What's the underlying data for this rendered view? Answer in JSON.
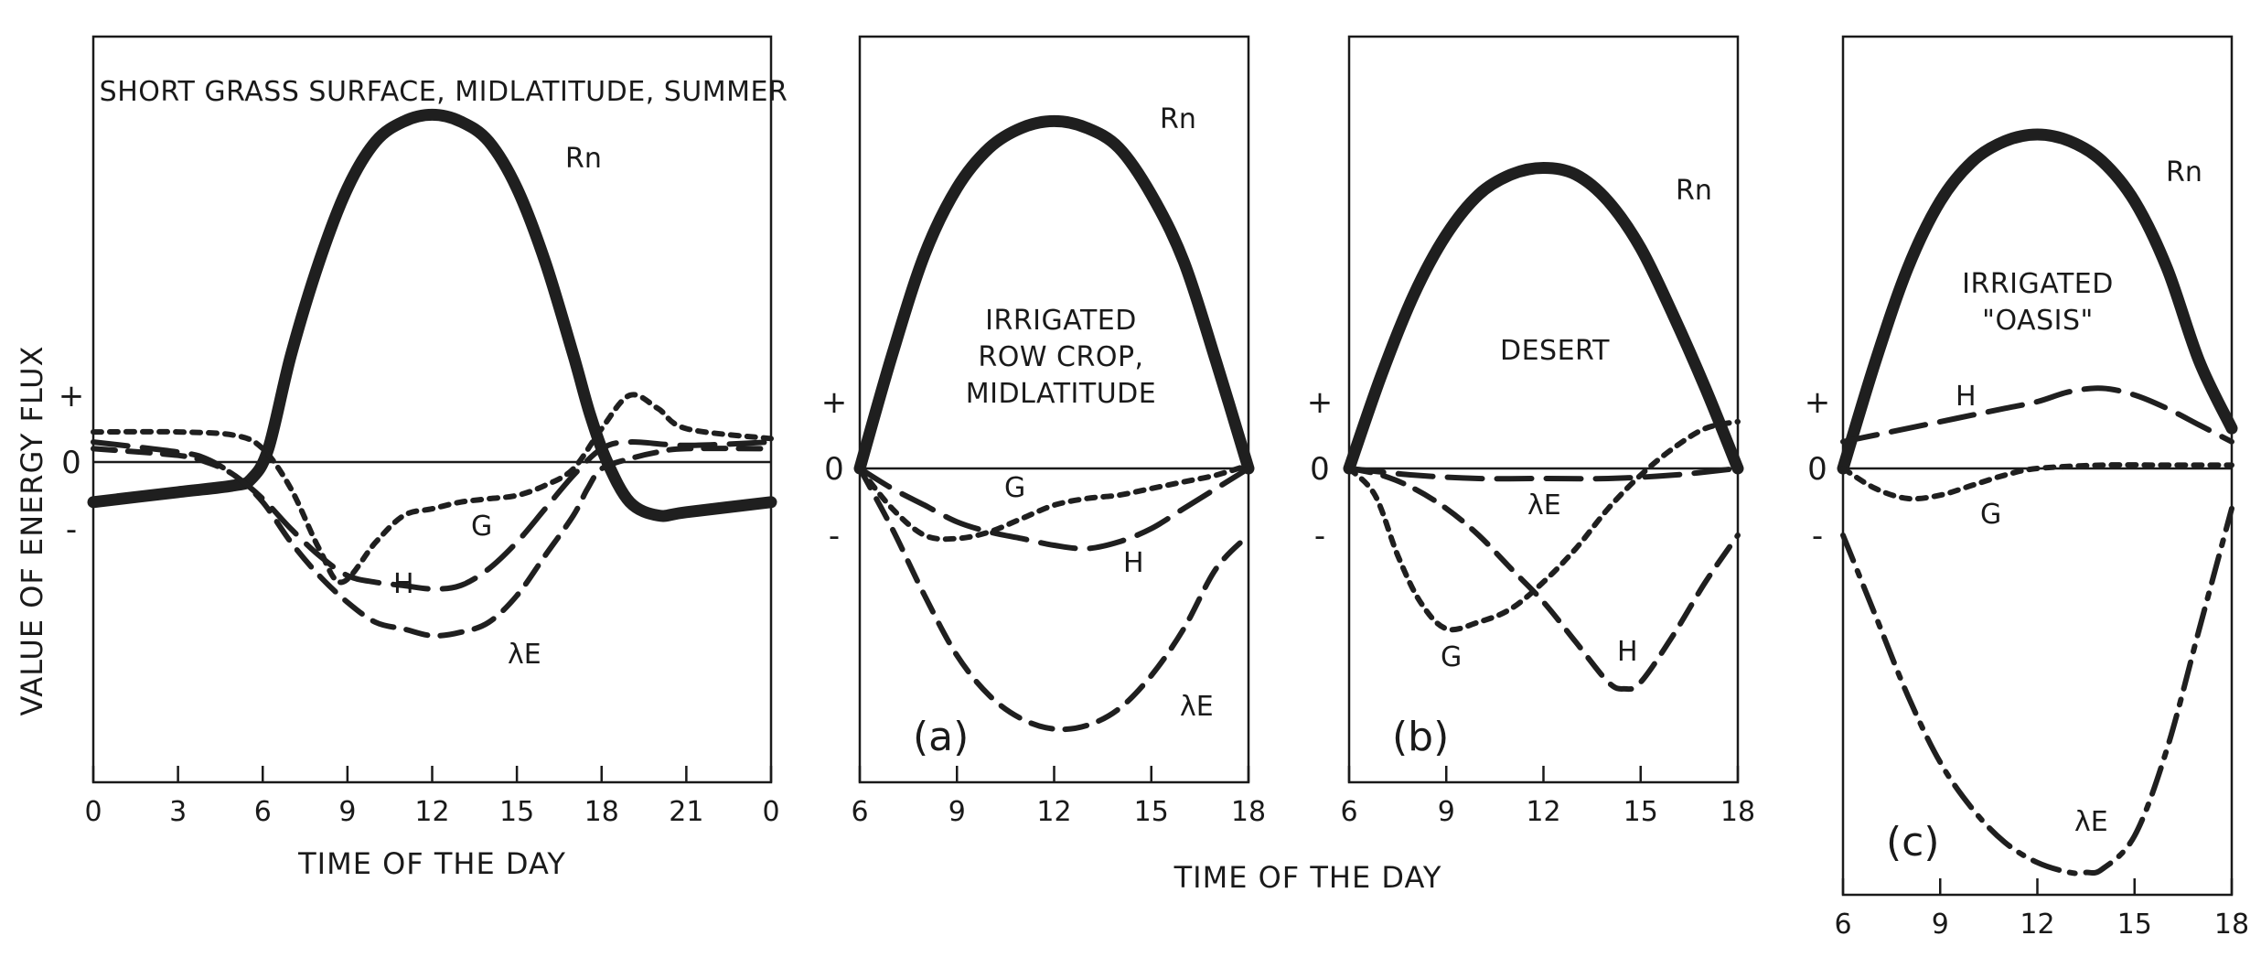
{
  "figure": {
    "ylabel": "VALUE OF ENERGY FLUX",
    "shared_xlabel": "TIME OF THE DAY"
  },
  "chart_data": [
    {
      "type": "line",
      "title": "SHORT GRASS SURFACE, MIDLATITUDE, SUMMER",
      "xlabel": "TIME OF THE DAY",
      "ylabel": "VALUE OF ENERGY FLUX",
      "panel_label": "",
      "xticks": [
        "0",
        "3",
        "6",
        "9",
        "12",
        "15",
        "18",
        "21",
        "0"
      ],
      "xlim": [
        0,
        24
      ],
      "ylim": [
        -4.5,
        5.5
      ],
      "yticks": [
        "+",
        "0",
        "-"
      ],
      "ytick_values": [
        1,
        0,
        -1
      ],
      "series": [
        {
          "name": "Rn",
          "style": "solid-thick",
          "x": [
            0,
            3,
            5,
            5.6,
            6.2,
            7,
            8,
            9,
            10,
            11,
            12,
            13,
            14,
            15,
            16,
            17,
            17.6,
            18.2,
            19,
            20,
            21,
            24
          ],
          "y": [
            -0.6,
            -0.45,
            -0.35,
            -0.25,
            0.2,
            1.6,
            3.0,
            4.1,
            4.8,
            5.1,
            5.2,
            5.1,
            4.8,
            4.1,
            3.0,
            1.6,
            0.7,
            0.0,
            -0.6,
            -0.8,
            -0.75,
            -0.6
          ]
        },
        {
          "name": "H",
          "style": "long-dash",
          "x": [
            0,
            3,
            4,
            5,
            6,
            7,
            8,
            9,
            10,
            11,
            12,
            13,
            14,
            15,
            16,
            17,
            18,
            19,
            21,
            24
          ],
          "y": [
            0.3,
            0.15,
            0.05,
            -0.2,
            -0.55,
            -1.0,
            -1.4,
            -1.7,
            -1.8,
            -1.85,
            -1.9,
            -1.85,
            -1.6,
            -1.2,
            -0.7,
            -0.2,
            0.2,
            0.3,
            0.25,
            0.3
          ]
        },
        {
          "name": "G",
          "style": "short-dash",
          "x": [
            0,
            3,
            5,
            6,
            7,
            8,
            8.8,
            10,
            11,
            12,
            13,
            14,
            15,
            16,
            17,
            18,
            19,
            20,
            21,
            24
          ],
          "y": [
            0.45,
            0.45,
            0.4,
            0.2,
            -0.4,
            -1.3,
            -1.8,
            -1.2,
            -0.8,
            -0.7,
            -0.6,
            -0.55,
            -0.5,
            -0.35,
            -0.1,
            0.5,
            1.0,
            0.8,
            0.5,
            0.35
          ]
        },
        {
          "name": "λE",
          "style": "dash",
          "x": [
            0,
            3,
            4,
            5,
            6,
            7,
            8,
            9,
            10,
            11,
            12,
            13,
            14,
            15,
            16,
            17,
            17.5,
            18,
            19,
            20,
            21,
            24
          ],
          "y": [
            0.2,
            0.1,
            0.0,
            -0.2,
            -0.6,
            -1.2,
            -1.7,
            -2.1,
            -2.4,
            -2.5,
            -2.6,
            -2.55,
            -2.4,
            -2.0,
            -1.4,
            -0.8,
            -0.4,
            -0.1,
            0.05,
            0.15,
            0.2,
            0.2
          ]
        }
      ],
      "curve_labels": [
        "Rn",
        "G",
        "H",
        "λE"
      ]
    },
    {
      "type": "line",
      "title": "IRRIGATED ROW CROP, MIDLATITUDE",
      "xlabel": "",
      "ylabel": "",
      "panel_label": "(a)",
      "xticks": [
        "6",
        "9",
        "12",
        "15",
        "18"
      ],
      "xlim": [
        6,
        18
      ],
      "ylim": [
        -4.5,
        5.5
      ],
      "yticks": [
        "+",
        "0",
        "-"
      ],
      "ytick_values": [
        1,
        0,
        -1
      ],
      "series": [
        {
          "name": "Rn",
          "style": "solid-thick",
          "x": [
            6,
            7,
            8,
            9,
            10,
            11,
            12,
            13,
            14,
            15,
            16,
            17,
            18
          ],
          "y": [
            0,
            1.7,
            3.2,
            4.2,
            4.8,
            5.1,
            5.2,
            5.1,
            4.8,
            4.1,
            3.1,
            1.6,
            0
          ]
        },
        {
          "name": "G",
          "style": "short-dash",
          "x": [
            6,
            7,
            8,
            9,
            10,
            11,
            12,
            13,
            14,
            15,
            16,
            17,
            18
          ],
          "y": [
            0,
            -0.6,
            -1.0,
            -1.05,
            -0.95,
            -0.75,
            -0.55,
            -0.45,
            -0.4,
            -0.3,
            -0.2,
            -0.1,
            0.05
          ]
        },
        {
          "name": "H",
          "style": "long-dash",
          "x": [
            6,
            7,
            8,
            9,
            10,
            11,
            12,
            13,
            14,
            15,
            16,
            17,
            18
          ],
          "y": [
            0,
            -0.3,
            -0.55,
            -0.8,
            -0.95,
            -1.05,
            -1.15,
            -1.2,
            -1.1,
            -0.9,
            -0.6,
            -0.3,
            0
          ]
        },
        {
          "name": "λE",
          "style": "dash",
          "x": [
            6,
            7,
            8,
            9,
            10,
            11,
            12,
            13,
            14,
            15,
            16,
            17,
            18
          ],
          "y": [
            0,
            -0.9,
            -1.9,
            -2.8,
            -3.4,
            -3.75,
            -3.9,
            -3.85,
            -3.6,
            -3.1,
            -2.4,
            -1.5,
            -1.0
          ]
        }
      ],
      "curve_labels": [
        "Rn",
        "G",
        "H",
        "λE"
      ]
    },
    {
      "type": "line",
      "title": "DESERT",
      "xlabel": "",
      "ylabel": "",
      "panel_label": "(b)",
      "xticks": [
        "6",
        "9",
        "12",
        "15",
        "18"
      ],
      "xlim": [
        6,
        18
      ],
      "ylim": [
        -4.5,
        5.5
      ],
      "yticks": [
        "+",
        "0",
        "-"
      ],
      "ytick_values": [
        1,
        0,
        -1
      ],
      "series": [
        {
          "name": "Rn",
          "style": "solid-thick",
          "x": [
            6,
            7,
            8,
            9,
            10,
            11,
            12,
            13,
            14,
            15,
            16,
            17,
            18
          ],
          "y": [
            0,
            1.4,
            2.6,
            3.5,
            4.1,
            4.4,
            4.5,
            4.4,
            4.0,
            3.3,
            2.3,
            1.2,
            0
          ]
        },
        {
          "name": "λE",
          "style": "long-dash",
          "x": [
            6,
            8,
            10,
            12,
            14,
            16,
            18
          ],
          "y": [
            0,
            -0.1,
            -0.15,
            -0.15,
            -0.15,
            -0.1,
            0
          ]
        },
        {
          "name": "G",
          "style": "short-dash",
          "x": [
            6,
            6.8,
            7.5,
            8.2,
            9,
            10,
            11,
            12,
            13,
            14,
            15,
            16,
            17,
            18
          ],
          "y": [
            0,
            -0.4,
            -1.3,
            -2.0,
            -2.4,
            -2.3,
            -2.1,
            -1.7,
            -1.2,
            -0.6,
            -0.1,
            0.3,
            0.6,
            0.7
          ]
        },
        {
          "name": "H",
          "style": "dash",
          "x": [
            6,
            7,
            8,
            9,
            10,
            11,
            12,
            13,
            14,
            14.5,
            15,
            16,
            17,
            18
          ],
          "y": [
            0,
            -0.1,
            -0.3,
            -0.6,
            -1.0,
            -1.5,
            -2.0,
            -2.6,
            -3.2,
            -3.3,
            -3.2,
            -2.5,
            -1.7,
            -1.0
          ]
        }
      ],
      "curve_labels": [
        "Rn",
        "λE",
        "G",
        "H"
      ]
    },
    {
      "type": "line",
      "title": "IRRIGATED \"OASIS\"",
      "xlabel": "",
      "ylabel": "",
      "panel_label": "(c)",
      "xticks": [
        "6",
        "9",
        "12",
        "15",
        "18"
      ],
      "xlim": [
        6,
        18
      ],
      "ylim": [
        -6.3,
        5.5
      ],
      "yticks": [
        "+",
        "0",
        "-"
      ],
      "ytick_values": [
        1,
        0,
        -1
      ],
      "series": [
        {
          "name": "Rn",
          "style": "solid-thick",
          "x": [
            6,
            7,
            8,
            9,
            10,
            11,
            12,
            13,
            14,
            15,
            16,
            17,
            18
          ],
          "y": [
            0,
            1.6,
            3.0,
            4.0,
            4.6,
            4.9,
            5.0,
            4.9,
            4.6,
            4.0,
            3.0,
            1.6,
            0.6
          ]
        },
        {
          "name": "H",
          "style": "long-dash",
          "x": [
            6,
            7,
            8,
            9,
            10,
            11,
            12,
            13,
            14,
            15,
            16,
            17,
            18
          ],
          "y": [
            0.4,
            0.5,
            0.6,
            0.7,
            0.8,
            0.9,
            1.0,
            1.15,
            1.2,
            1.1,
            0.9,
            0.65,
            0.4
          ]
        },
        {
          "name": "G",
          "style": "short-dash",
          "x": [
            6,
            7,
            8,
            9,
            10,
            11,
            12,
            14,
            16,
            18
          ],
          "y": [
            0,
            -0.3,
            -0.45,
            -0.4,
            -0.25,
            -0.1,
            0,
            0.05,
            0.05,
            0.05
          ]
        },
        {
          "name": "λE",
          "style": "dash-dot",
          "x": [
            6,
            7,
            8,
            9,
            10,
            11,
            12,
            13,
            13.5,
            14,
            15,
            16,
            17,
            18
          ],
          "y": [
            -1.0,
            -2.2,
            -3.4,
            -4.4,
            -5.1,
            -5.6,
            -5.9,
            -6.05,
            -6.05,
            -6.0,
            -5.5,
            -4.2,
            -2.4,
            -0.6
          ]
        }
      ],
      "curve_labels": [
        "Rn",
        "H",
        "G",
        "λE"
      ]
    }
  ]
}
